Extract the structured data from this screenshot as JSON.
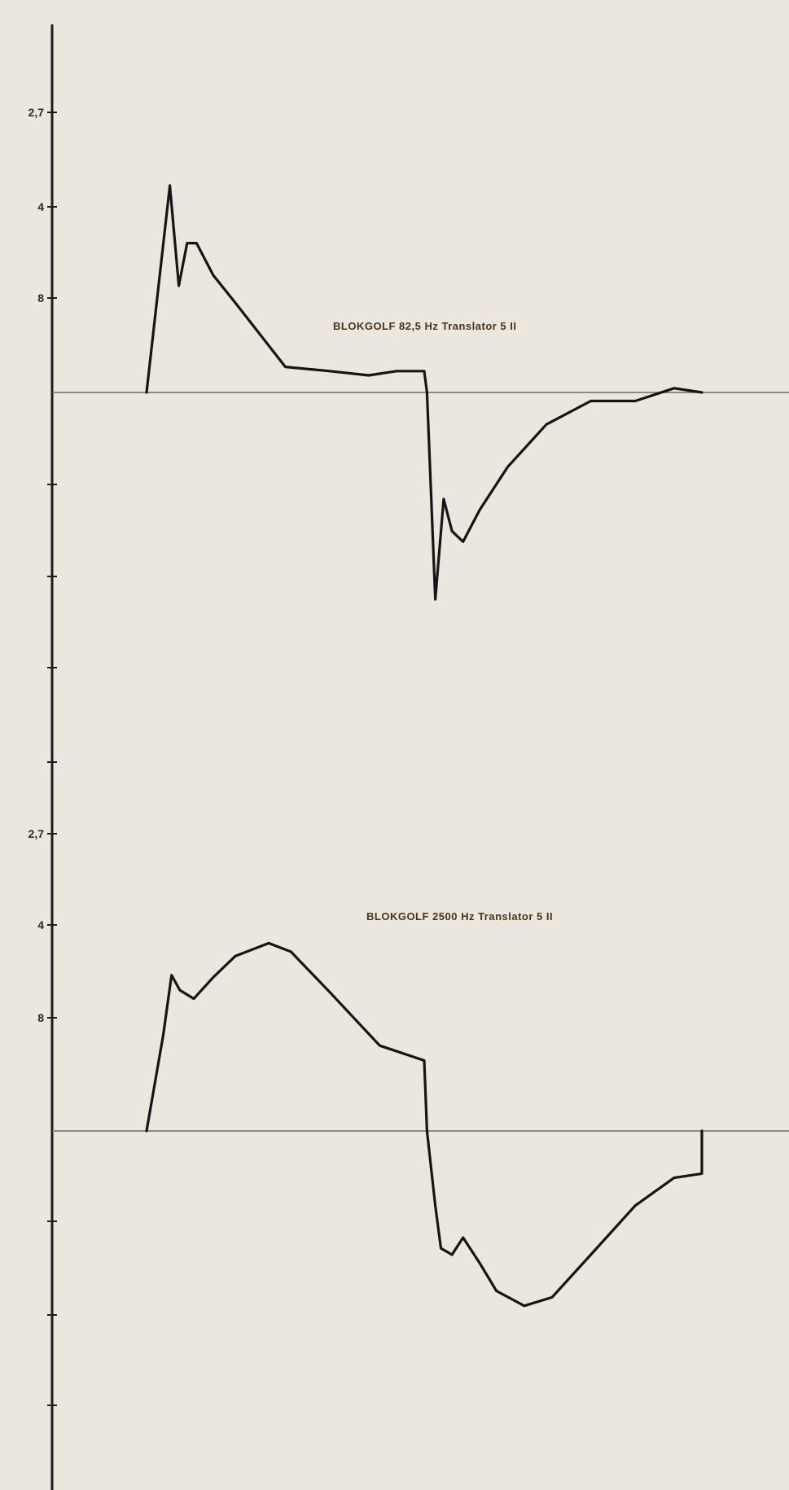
{
  "colors": {
    "background": "#ebe7df",
    "axis": "#1c1c1c",
    "baseline": "#6b6b6b",
    "trace": "#151515",
    "caption": "#4a3418"
  },
  "chart_data": [
    {
      "type": "line",
      "title": "",
      "caption": "BLOKGOLF  82,5 Hz     Translator  5  II",
      "xlabel": "",
      "ylabel": "",
      "grid": false,
      "y_tick_labels": [
        "2,7",
        "4",
        "8",
        "",
        "",
        "",
        ""
      ],
      "xlim": [
        0,
        1
      ],
      "ylim": [
        -1,
        1
      ],
      "series": [
        {
          "name": "",
          "x": [
            0.0,
            0.042,
            0.058,
            0.073,
            0.09,
            0.12,
            0.16,
            0.25,
            0.33,
            0.4,
            0.45,
            0.5,
            0.505,
            0.52,
            0.535,
            0.55,
            0.57,
            0.6,
            0.65,
            0.72,
            0.8,
            0.88,
            0.95,
            1.0,
            1.0
          ],
          "y": [
            0.0,
            0.97,
            0.5,
            0.7,
            0.7,
            0.55,
            0.42,
            0.12,
            0.1,
            0.08,
            0.1,
            0.1,
            0.0,
            -0.97,
            -0.5,
            -0.65,
            -0.7,
            -0.55,
            -0.35,
            -0.15,
            -0.04,
            -0.04,
            0.02,
            0.0,
            0.0
          ]
        }
      ]
    },
    {
      "type": "line",
      "title": "",
      "caption": "BLOKGOLF  2500 Hz     Translator  5  II",
      "xlabel": "",
      "ylabel": "",
      "grid": false,
      "y_tick_labels": [
        "2,7",
        "4",
        "8",
        "",
        "",
        "",
        ""
      ],
      "xlim": [
        0,
        1
      ],
      "ylim": [
        -1,
        1
      ],
      "series": [
        {
          "name": "",
          "x": [
            0.0,
            0.03,
            0.045,
            0.06,
            0.085,
            0.12,
            0.16,
            0.22,
            0.26,
            0.33,
            0.42,
            0.5,
            0.505,
            0.52,
            0.53,
            0.55,
            0.57,
            0.6,
            0.63,
            0.68,
            0.73,
            0.8,
            0.88,
            0.95,
            1.0,
            1.0
          ],
          "y": [
            0.0,
            0.45,
            0.73,
            0.66,
            0.62,
            0.72,
            0.82,
            0.88,
            0.84,
            0.65,
            0.4,
            0.33,
            0.0,
            -0.35,
            -0.55,
            -0.58,
            -0.5,
            -0.62,
            -0.75,
            -0.82,
            -0.78,
            -0.58,
            -0.35,
            -0.22,
            -0.2,
            0.0
          ]
        }
      ]
    }
  ]
}
